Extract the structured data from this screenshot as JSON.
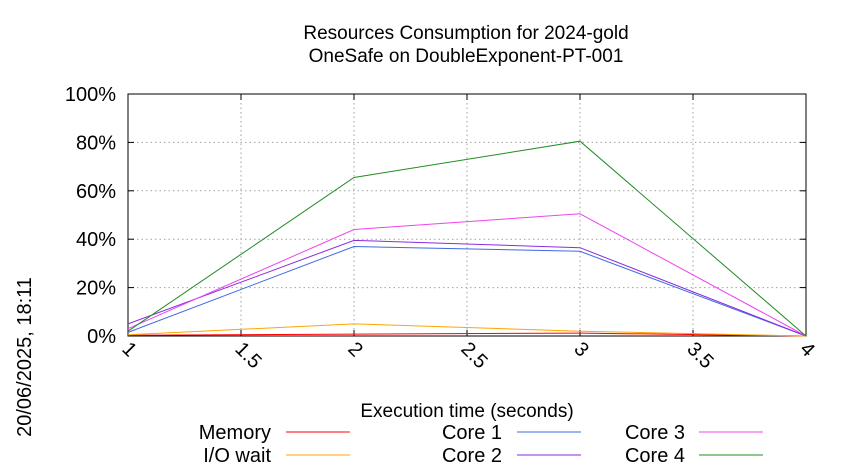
{
  "chart_data": {
    "type": "line",
    "title": "Resources Consumption for 2024-gold",
    "subtitle": "OneSafe on DoubleExponent-PT-001",
    "xlabel": "Execution time (seconds)",
    "ylabel": "",
    "side_label": "20/06/2025, 18:11",
    "xlim": [
      1,
      4
    ],
    "ylim": [
      0,
      100
    ],
    "x_ticks": [
      "1",
      "1.5",
      "2",
      "2.5",
      "3",
      "3.5",
      "4"
    ],
    "x_tick_values": [
      1,
      1.5,
      2,
      2.5,
      3,
      3.5,
      4
    ],
    "y_ticks": [
      "0%",
      "20%",
      "40%",
      "60%",
      "80%",
      "100%"
    ],
    "y_tick_values": [
      0,
      20,
      40,
      60,
      80,
      100
    ],
    "grid": true,
    "legend_position": "bottom",
    "x": [
      1,
      2,
      3,
      4
    ],
    "series": [
      {
        "name": "Memory",
        "color": "#ff0000",
        "values": [
          0.3,
          0.8,
          1.2,
          0
        ]
      },
      {
        "name": "I/O wait",
        "color": "#ffa500",
        "values": [
          0.5,
          5.0,
          2.0,
          0
        ]
      },
      {
        "name": "Core 1",
        "color": "#4169e1",
        "values": [
          1.5,
          37.0,
          35.0,
          0
        ]
      },
      {
        "name": "Core 2",
        "color": "#8a2be2",
        "values": [
          5.0,
          39.5,
          36.5,
          0
        ]
      },
      {
        "name": "Core 3",
        "color": "#ee44ee",
        "values": [
          3.0,
          44.0,
          50.5,
          0
        ]
      },
      {
        "name": "Core 4",
        "color": "#228b22",
        "values": [
          2.0,
          65.5,
          80.5,
          0
        ]
      }
    ]
  }
}
